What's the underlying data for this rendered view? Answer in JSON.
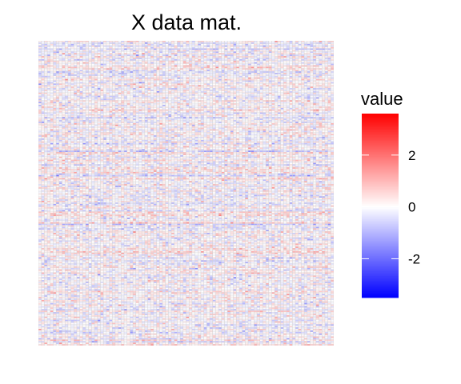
{
  "chart_data": {
    "type": "heatmap",
    "title": "X data mat.",
    "xlabel": "",
    "ylabel": "",
    "n_rows": 200,
    "n_cols": 100,
    "value_range": [
      -3.5,
      3.6
    ],
    "color_scale": {
      "low": "#0000FF",
      "mid": "#FFFFFF",
      "high": "#FF0000",
      "midpoint": 0
    },
    "legend": {
      "title": "value",
      "placement": "right",
      "ticks": [
        {
          "value": 2,
          "label": "2"
        },
        {
          "value": 0,
          "label": "0"
        },
        {
          "value": -2,
          "label": "-2"
        }
      ]
    },
    "grid": false,
    "cell_border_color": "#D3D3D3"
  }
}
